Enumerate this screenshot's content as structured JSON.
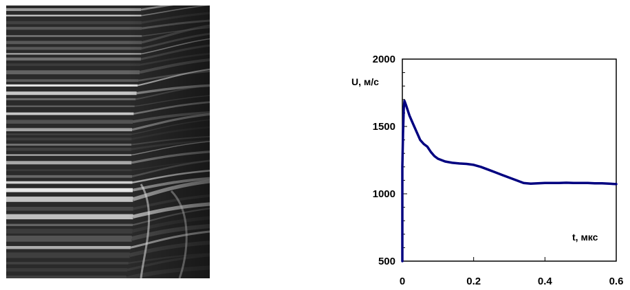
{
  "figure": {
    "left_panel": {
      "kind": "streak-photograph",
      "colors": {
        "dark": "#1c1c1c",
        "light": "#f2f2f2",
        "mid": "#7a7a7a"
      }
    }
  },
  "chart_data": {
    "type": "line",
    "xlabel": "t, мкс",
    "ylabel": "U, м/с",
    "xlim": [
      0,
      0.6
    ],
    "ylim": [
      500,
      2000
    ],
    "x_ticks": [
      "0",
      "0.2",
      "0.4",
      "0.6"
    ],
    "y_ticks": [
      "500",
      "1000",
      "1500",
      "2000"
    ],
    "grid": false,
    "legend": "none",
    "series": [
      {
        "color": "#000080",
        "x": [
          0,
          0.002,
          0.004,
          0.006,
          0.01,
          0.02,
          0.03,
          0.04,
          0.05,
          0.06,
          0.07,
          0.08,
          0.09,
          0.1,
          0.12,
          0.14,
          0.16,
          0.18,
          0.2,
          0.22,
          0.24,
          0.26,
          0.28,
          0.3,
          0.32,
          0.34,
          0.36,
          0.38,
          0.4,
          0.42,
          0.44,
          0.46,
          0.48,
          0.5,
          0.52,
          0.54,
          0.56,
          0.58,
          0.6
        ],
        "y": [
          1200,
          1450,
          1640,
          1690,
          1660,
          1580,
          1520,
          1460,
          1400,
          1370,
          1350,
          1310,
          1280,
          1260,
          1240,
          1230,
          1225,
          1222,
          1215,
          1200,
          1180,
          1160,
          1140,
          1120,
          1100,
          1080,
          1075,
          1078,
          1080,
          1080,
          1080,
          1082,
          1080,
          1080,
          1080,
          1078,
          1078,
          1075,
          1072
        ]
      }
    ]
  }
}
